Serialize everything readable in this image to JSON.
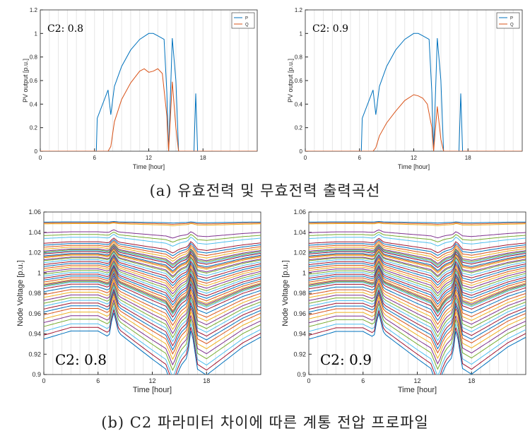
{
  "captions": {
    "a": "(a) 유효전력 및 무효전력 출력곡선",
    "b": "(b) C2 파라미터 차이에 따른 계통 전압 프로파일"
  },
  "colors": {
    "P": "#0072BD",
    "Q": "#D95319",
    "palette": [
      "#0072BD",
      "#D95319",
      "#EDB120",
      "#7E2F8E",
      "#77AC30",
      "#4DBEEE",
      "#A2142F"
    ]
  },
  "chart_data": [
    {
      "type": "line",
      "panel": "a-left",
      "annotation": "C2: 0.8",
      "xlabel": "Time [hour]",
      "ylabel": "PV output [p.u.]",
      "xlim": [
        0,
        24
      ],
      "ylim": [
        0,
        1.2
      ],
      "xticks": [
        "0",
        "6",
        "12",
        "18"
      ],
      "yticks": [
        "0",
        "0.2",
        "0.4",
        "0.6",
        "0.8",
        "1",
        "1.2"
      ],
      "grid": "vertical",
      "legend": "top-right",
      "series": [
        {
          "name": "P",
          "x": [
            0,
            6.2,
            6.3,
            7.5,
            7.8,
            8.2,
            9,
            10,
            11,
            12,
            12.5,
            13,
            13.7,
            14,
            14.2,
            14.6,
            15,
            15.3,
            17,
            17.2,
            17.4,
            24
          ],
          "y": [
            0,
            0,
            0.28,
            0.52,
            0.31,
            0.55,
            0.72,
            0.86,
            0.95,
            1.0,
            1.0,
            0.98,
            0.95,
            0.5,
            0,
            0.96,
            0.6,
            0,
            0,
            0.49,
            0,
            0
          ]
        },
        {
          "name": "Q",
          "x": [
            0,
            7.5,
            7.8,
            8.2,
            9,
            10,
            11,
            11.5,
            12,
            12.5,
            13,
            13.5,
            14,
            14.2,
            14.6,
            15,
            15.3,
            24
          ],
          "y": [
            0,
            0,
            0.04,
            0.25,
            0.44,
            0.58,
            0.68,
            0.7,
            0.67,
            0.68,
            0.7,
            0.66,
            0.3,
            0,
            0.59,
            0.2,
            0,
            0
          ]
        }
      ]
    },
    {
      "type": "line",
      "panel": "a-right",
      "annotation": "C2: 0.9",
      "xlabel": "Time [hour]",
      "ylabel": "PV output [p.u.]",
      "xlim": [
        0,
        24
      ],
      "ylim": [
        0,
        1.2
      ],
      "xticks": [
        "0",
        "6",
        "12",
        "18"
      ],
      "yticks": [
        "0",
        "0.2",
        "0.4",
        "0.6",
        "0.8",
        "1",
        "1.2"
      ],
      "grid": "vertical",
      "legend": "top-right",
      "series": [
        {
          "name": "P",
          "x": [
            0,
            6.2,
            6.3,
            7.5,
            7.8,
            8.2,
            9,
            10,
            11,
            12,
            12.5,
            13,
            13.7,
            14,
            14.2,
            14.6,
            15,
            15.3,
            17,
            17.2,
            17.4,
            24
          ],
          "y": [
            0,
            0,
            0.28,
            0.52,
            0.31,
            0.55,
            0.72,
            0.86,
            0.95,
            1.0,
            1.0,
            0.98,
            0.95,
            0.5,
            0,
            0.96,
            0.6,
            0,
            0,
            0.49,
            0,
            0
          ]
        },
        {
          "name": "Q",
          "x": [
            0,
            7.5,
            7.8,
            8.2,
            9,
            10,
            11,
            12,
            12.5,
            13,
            13.5,
            14,
            14.2,
            14.6,
            15,
            15.3,
            24
          ],
          "y": [
            0,
            0,
            0.03,
            0.13,
            0.24,
            0.34,
            0.43,
            0.48,
            0.47,
            0.45,
            0.4,
            0.2,
            0,
            0.38,
            0.1,
            0,
            0
          ]
        }
      ]
    },
    {
      "type": "line",
      "panel": "b-left",
      "annotation": "C2: 0.8",
      "xlabel": "Time [hour]",
      "ylabel": "Node Voltage [p.u.]",
      "xlim": [
        0,
        24
      ],
      "ylim": [
        0.9,
        1.06
      ],
      "xticks": [
        "0",
        "6",
        "12",
        "18"
      ],
      "yticks": [
        "0.9",
        "0.92",
        "0.94",
        "0.96",
        "0.98",
        "1",
        "1.02",
        "1.04",
        "1.06"
      ],
      "grid": "vertical",
      "profile": {
        "x": [
          0,
          3,
          6,
          7.2,
          7.7,
          8.3,
          10,
          12,
          13.5,
          14.3,
          14.8,
          15.2,
          15.9,
          16.3,
          17,
          18,
          20,
          22,
          24
        ],
        "shape": [
          0.15,
          0.35,
          0.35,
          0.2,
          0.85,
          0.3,
          0.0,
          -0.35,
          -0.6,
          -1.1,
          -0.7,
          -0.5,
          -0.3,
          0.45,
          -0.6,
          -0.75,
          -0.4,
          -0.05,
          0.2
        ]
      },
      "bases": [
        1.05,
        1.049,
        1.048,
        1.039,
        1.036,
        1.033,
        1.028,
        1.026,
        1.024,
        1.022,
        1.02,
        1.019,
        1.018,
        1.017,
        1.015,
        1.014,
        1.013,
        1.011,
        1.01,
        1.008,
        1.006,
        1.004,
        1.002,
        1.0,
        0.998,
        0.996,
        0.994,
        0.992,
        0.99,
        0.988,
        0.986,
        0.985,
        0.984,
        0.983,
        0.981,
        0.978,
        0.975,
        0.972,
        0.969,
        0.966,
        0.963,
        0.96,
        0.957,
        0.954,
        0.95,
        0.946,
        0.942,
        0.937,
        0.933,
        0.929
      ],
      "amp_scale": 1.0
    },
    {
      "type": "line",
      "panel": "b-right",
      "annotation": "C2: 0.9",
      "xlabel": "Time [hour]",
      "ylabel": "Node Voltage [p.u.]",
      "xlim": [
        0,
        24
      ],
      "ylim": [
        0.9,
        1.06
      ],
      "xticks": [
        "0",
        "6",
        "12",
        "18"
      ],
      "yticks": [
        "0.9",
        "0.92",
        "0.94",
        "0.96",
        "0.98",
        "1",
        "1.02",
        "1.04",
        "1.06"
      ],
      "grid": "vertical",
      "profile": {
        "x": [
          0,
          3,
          6,
          7.2,
          7.7,
          8.3,
          10,
          12,
          13.5,
          14.3,
          14.8,
          15.2,
          15.9,
          16.3,
          17,
          18,
          20,
          22,
          24
        ],
        "shape": [
          0.15,
          0.35,
          0.35,
          0.2,
          0.85,
          0.3,
          0.0,
          -0.35,
          -0.6,
          -1.1,
          -0.7,
          -0.5,
          -0.3,
          0.45,
          -0.6,
          -0.75,
          -0.4,
          -0.05,
          0.2
        ]
      },
      "bases": [
        1.05,
        1.049,
        1.048,
        1.039,
        1.036,
        1.033,
        1.028,
        1.026,
        1.024,
        1.022,
        1.02,
        1.019,
        1.018,
        1.017,
        1.015,
        1.014,
        1.013,
        1.011,
        1.01,
        1.008,
        1.006,
        1.004,
        1.002,
        1.0,
        0.998,
        0.996,
        0.994,
        0.992,
        0.99,
        0.988,
        0.986,
        0.985,
        0.984,
        0.983,
        0.981,
        0.978,
        0.975,
        0.972,
        0.969,
        0.966,
        0.963,
        0.96,
        0.957,
        0.954,
        0.95,
        0.946,
        0.942,
        0.937,
        0.933,
        0.929
      ],
      "amp_scale": 0.97
    }
  ]
}
